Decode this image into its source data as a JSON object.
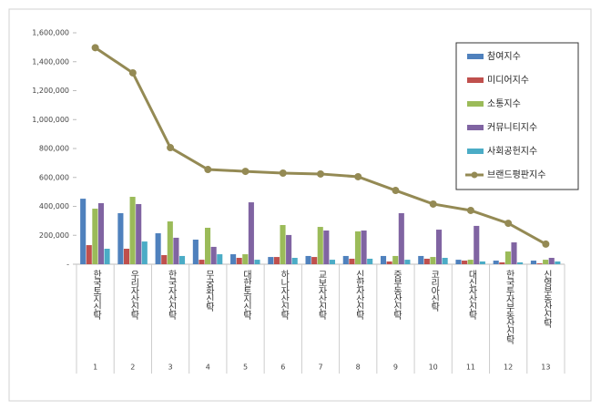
{
  "chart_data": {
    "type": "bar",
    "categories": [
      "한국토지신탁",
      "우리자산신탁",
      "한국자산신탁",
      "무궁화신탁",
      "대한토지신탁",
      "하나자산신탁",
      "교보자산신탁",
      "신한자산신탁",
      "중부동산신탁",
      "코리아신탁",
      "대신자산신탁",
      "한국투자부동산신탁",
      "신영부동산신탁"
    ],
    "category_numbers": [
      1,
      2,
      3,
      4,
      5,
      6,
      7,
      8,
      9,
      10,
      11,
      12,
      13
    ],
    "series": [
      {
        "name": "참여지수",
        "color": "#4f81bd",
        "values": [
          453000,
          353000,
          214000,
          170000,
          69000,
          50000,
          57000,
          57000,
          57000,
          57000,
          31000,
          25000,
          25000
        ]
      },
      {
        "name": "미디어지수",
        "color": "#c0504d",
        "values": [
          132000,
          107000,
          63000,
          31000,
          44000,
          50000,
          50000,
          38000,
          19000,
          38000,
          25000,
          13000,
          6000
        ]
      },
      {
        "name": "소통지수",
        "color": "#9bbb59",
        "values": [
          384000,
          466000,
          296000,
          252000,
          69000,
          271000,
          258000,
          227000,
          57000,
          50000,
          31000,
          88000,
          31000
        ]
      },
      {
        "name": "커뮤니티지수",
        "color": "#8064a2",
        "values": [
          422000,
          416000,
          183000,
          120000,
          428000,
          202000,
          233000,
          233000,
          353000,
          239000,
          265000,
          151000,
          44000
        ]
      },
      {
        "name": "사회공헌지수",
        "color": "#4bacc6",
        "values": [
          107000,
          157000,
          57000,
          69000,
          31000,
          44000,
          31000,
          38000,
          31000,
          44000,
          19000,
          13000,
          19000
        ]
      },
      {
        "name": "브랜드평판지수",
        "color": "#948a54",
        "type": "line",
        "values": [
          1497000,
          1323000,
          806000,
          655000,
          642000,
          630000,
          624000,
          605000,
          510000,
          416000,
          372000,
          283000,
          139000
        ]
      }
    ],
    "ylim": [
      0,
      1600000
    ],
    "yticks": [
      {
        "value": 0,
        "label": "-"
      },
      {
        "value": 200000,
        "label": "200,000"
      },
      {
        "value": 400000,
        "label": "400,000"
      },
      {
        "value": 600000,
        "label": "600,000"
      },
      {
        "value": 800000,
        "label": "800,000"
      },
      {
        "value": 1000000,
        "label": "1,000,000"
      },
      {
        "value": 1200000,
        "label": "1,200,000"
      },
      {
        "value": 1400000,
        "label": "1,400,000"
      },
      {
        "value": 1600000,
        "label": "1,600,000"
      }
    ],
    "legend": "right"
  }
}
